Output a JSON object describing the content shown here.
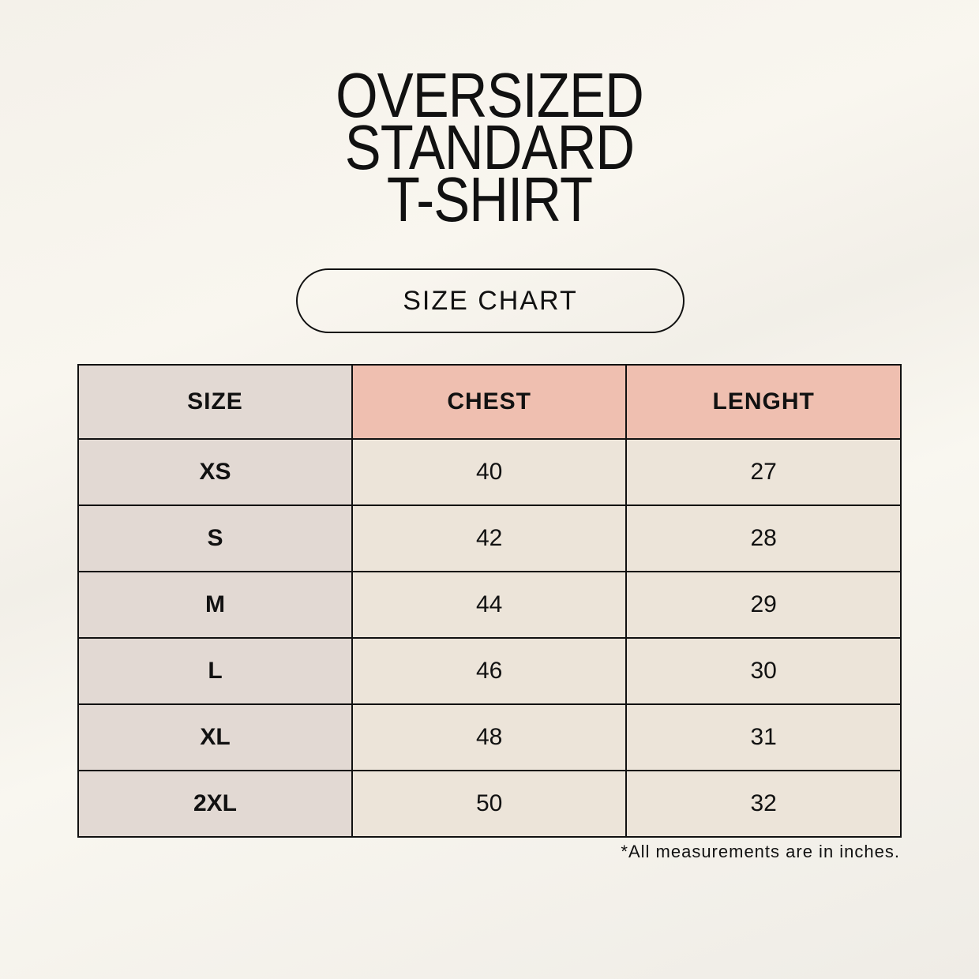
{
  "title": {
    "lines": [
      "OVERSIZED",
      "STANDARD",
      "T-SHIRT"
    ]
  },
  "badge": "SIZE CHART",
  "table": {
    "headers": [
      "SIZE",
      "CHEST",
      "LENGHT"
    ],
    "rows": [
      [
        "XS",
        "40",
        "27"
      ],
      [
        "S",
        "42",
        "28"
      ],
      [
        "M",
        "44",
        "29"
      ],
      [
        "L",
        "46",
        "30"
      ],
      [
        "XL",
        "48",
        "31"
      ],
      [
        "2XL",
        "50",
        "32"
      ]
    ]
  },
  "footnote": "*All measurements are in inches.",
  "colors": {
    "background": "#f7f4ee",
    "size_column": "#e2d9d3",
    "header_accent": "#efbfb0",
    "cell": "#ece4d9",
    "border": "#111111"
  }
}
